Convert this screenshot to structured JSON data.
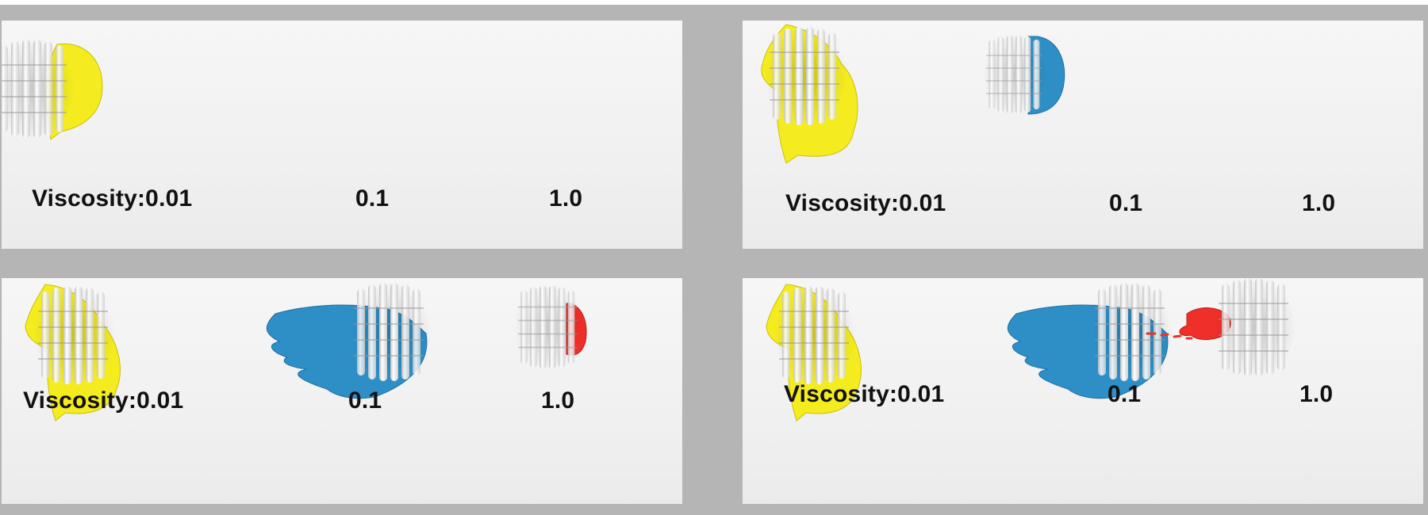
{
  "panels": [
    {
      "id": "top-left",
      "labels": {
        "v1": "Viscosity:0.01",
        "v2": "0.1",
        "v3": "1.0"
      }
    },
    {
      "id": "top-right",
      "labels": {
        "v1": "Viscosity:0.01",
        "v2": "0.1",
        "v3": "1.0"
      }
    },
    {
      "id": "bottom-left",
      "labels": {
        "v1": "Viscosity:0.01",
        "v2": "0.1",
        "v3": "1.0"
      }
    },
    {
      "id": "bottom-right",
      "labels": {
        "v1": "Viscosity:0.01",
        "v2": "0.1",
        "v3": "1.0"
      }
    }
  ],
  "colors": {
    "viscosity_0_01": "#f4ec1f",
    "viscosity_0_1": "#2e8fc7",
    "viscosity_1_0": "#ef2f2a",
    "emitter": "#e6e6e6",
    "frame": "#b5b5b5",
    "panel": "#f2f2f2"
  }
}
